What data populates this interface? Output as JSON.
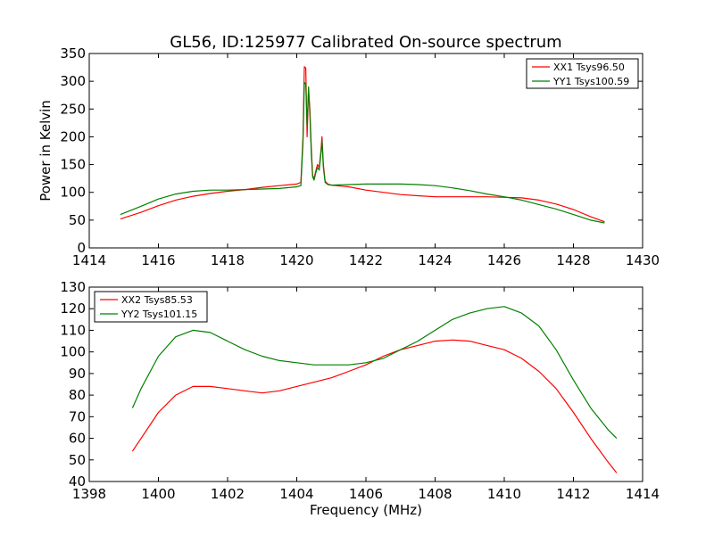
{
  "figure": {
    "title": "GL56, ID:125977 Calibrated On-source spectrum"
  },
  "chart_data": [
    {
      "type": "line",
      "title": "GL56, ID:125977 Calibrated On-source spectrum",
      "xlabel": "",
      "ylabel": "Power in Kelvin",
      "xlim": [
        1414,
        1430
      ],
      "ylim": [
        0,
        350
      ],
      "xticks": [
        1414,
        1416,
        1418,
        1420,
        1422,
        1424,
        1426,
        1428,
        1430
      ],
      "yticks": [
        0,
        50,
        100,
        150,
        200,
        250,
        300,
        350
      ],
      "legend_position": "top-right",
      "grid": false,
      "series": [
        {
          "name": "XX1 Tsys96.50",
          "color": "#ff0000",
          "x": [
            1414.9,
            1415.5,
            1416.0,
            1416.5,
            1417.0,
            1417.5,
            1418.0,
            1418.5,
            1419.0,
            1419.5,
            1420.0,
            1420.12,
            1420.18,
            1420.22,
            1420.26,
            1420.3,
            1420.34,
            1420.38,
            1420.42,
            1420.46,
            1420.5,
            1420.55,
            1420.6,
            1420.65,
            1420.7,
            1420.73,
            1420.77,
            1420.82,
            1420.9,
            1421.0,
            1421.5,
            1422.0,
            1422.5,
            1423.0,
            1423.5,
            1424.0,
            1424.5,
            1425.0,
            1425.5,
            1426.0,
            1426.5,
            1427.0,
            1427.5,
            1428.0,
            1428.5,
            1428.9
          ],
          "y": [
            52,
            64,
            76,
            86,
            93,
            98,
            102,
            105,
            109,
            112,
            115,
            118,
            200,
            326,
            324,
            200,
            285,
            250,
            180,
            130,
            125,
            138,
            150,
            145,
            175,
            200,
            150,
            120,
            115,
            113,
            110,
            104,
            100,
            96,
            94,
            92,
            92,
            92,
            92,
            91,
            90,
            86,
            79,
            69,
            56,
            47
          ]
        },
        {
          "name": "YY1 Tsys100.59",
          "color": "#008000",
          "x": [
            1414.9,
            1415.5,
            1416.0,
            1416.5,
            1417.0,
            1417.5,
            1418.0,
            1418.5,
            1419.0,
            1419.5,
            1420.0,
            1420.12,
            1420.18,
            1420.22,
            1420.26,
            1420.3,
            1420.34,
            1420.38,
            1420.42,
            1420.46,
            1420.5,
            1420.55,
            1420.6,
            1420.65,
            1420.7,
            1420.73,
            1420.77,
            1420.82,
            1420.9,
            1421.0,
            1421.5,
            1422.0,
            1422.5,
            1423.0,
            1423.5,
            1424.0,
            1424.5,
            1425.0,
            1425.5,
            1426.0,
            1426.5,
            1427.0,
            1427.5,
            1428.0,
            1428.5,
            1428.9
          ],
          "y": [
            60,
            75,
            88,
            97,
            102,
            104,
            104,
            105,
            106,
            107,
            110,
            112,
            190,
            298,
            295,
            220,
            290,
            240,
            170,
            128,
            122,
            135,
            145,
            140,
            170,
            193,
            145,
            118,
            114,
            113,
            114,
            115,
            115,
            115,
            114,
            112,
            108,
            103,
            97,
            92,
            86,
            78,
            70,
            60,
            50,
            45
          ]
        }
      ]
    },
    {
      "type": "line",
      "title": "",
      "xlabel": "Frequency (MHz)",
      "ylabel": "",
      "xlim": [
        1398,
        1414
      ],
      "ylim": [
        40,
        130
      ],
      "xticks": [
        1398,
        1400,
        1402,
        1404,
        1406,
        1408,
        1410,
        1412,
        1414
      ],
      "yticks": [
        40,
        50,
        60,
        70,
        80,
        90,
        100,
        110,
        120,
        130
      ],
      "legend_position": "top-left",
      "grid": false,
      "series": [
        {
          "name": "XX2 Tsys85.53",
          "color": "#ff0000",
          "x": [
            1399.25,
            1399.5,
            1400.0,
            1400.5,
            1401.0,
            1401.5,
            1402.0,
            1402.5,
            1403.0,
            1403.5,
            1404.0,
            1404.5,
            1405.0,
            1405.5,
            1406.0,
            1406.5,
            1407.0,
            1407.5,
            1408.0,
            1408.5,
            1409.0,
            1409.5,
            1410.0,
            1410.5,
            1411.0,
            1411.5,
            1412.0,
            1412.5,
            1413.0,
            1413.25
          ],
          "y": [
            54,
            60,
            72,
            80,
            84,
            84,
            83,
            82,
            81,
            82,
            84,
            86,
            88,
            91,
            94,
            98,
            101,
            103,
            105,
            105.5,
            105,
            103,
            101,
            97,
            91,
            83,
            72,
            60,
            49,
            44
          ]
        },
        {
          "name": "YY2 Tsys101.15",
          "color": "#008000",
          "x": [
            1399.25,
            1399.5,
            1400.0,
            1400.5,
            1401.0,
            1401.5,
            1402.0,
            1402.5,
            1403.0,
            1403.5,
            1404.0,
            1404.5,
            1405.0,
            1405.5,
            1406.0,
            1406.5,
            1407.0,
            1407.5,
            1408.0,
            1408.5,
            1409.0,
            1409.5,
            1410.0,
            1410.5,
            1411.0,
            1411.5,
            1412.0,
            1412.5,
            1413.0,
            1413.25
          ],
          "y": [
            74,
            83,
            98,
            107,
            110,
            109,
            105,
            101,
            98,
            96,
            95,
            94,
            94,
            94,
            95,
            97,
            101,
            105,
            110,
            115,
            118,
            120,
            121,
            118,
            112,
            101,
            87,
            74,
            64,
            60
          ]
        }
      ]
    }
  ]
}
